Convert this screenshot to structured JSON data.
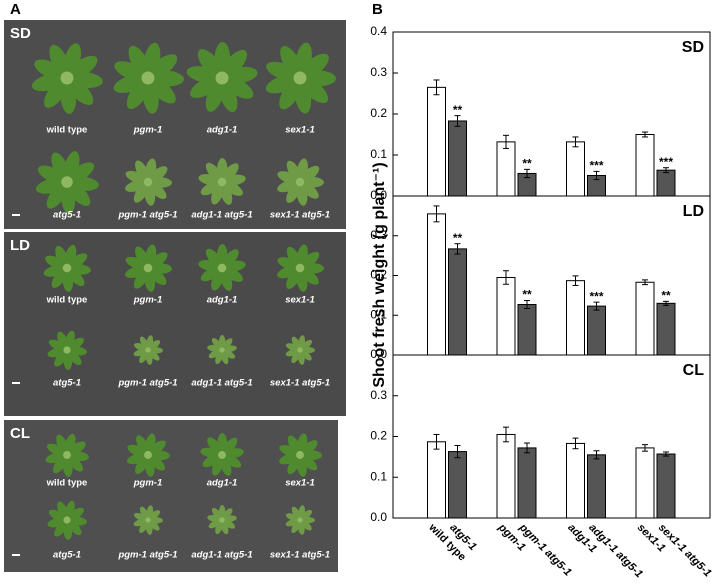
{
  "panel_labels": [
    "A",
    "B"
  ],
  "photos": [
    {
      "condition": "SD",
      "top_labels": [
        "wild type",
        "pgm-1",
        "adg1-1",
        "sex1-1"
      ],
      "bottom_labels": [
        "atg5-1",
        "pgm-1 atg5-1",
        "adg1-1 atg5-1",
        "sex1-1 atg5-1"
      ]
    },
    {
      "condition": "LD",
      "top_labels": [
        "wild type",
        "pgm-1",
        "adg1-1",
        "sex1-1"
      ],
      "bottom_labels": [
        "atg5-1",
        "pgm-1 atg5-1",
        "adg1-1 atg5-1",
        "sex1-1 atg5-1"
      ]
    },
    {
      "condition": "CL",
      "top_labels": [
        "wild type",
        "pgm-1",
        "adg1-1",
        "sex1-1"
      ],
      "bottom_labels": [
        "atg5-1",
        "pgm-1 atg5-1",
        "adg1-1 atg5-1",
        "sex1-1 atg5-1"
      ]
    }
  ],
  "chart_data": {
    "type": "bar",
    "ylabel": "Shoot fresh weight (g plant⁻¹)",
    "categories": [
      "wild type",
      "atg5-1",
      "pgm-1",
      "pgm-1 atg5-1",
      "adg1-1",
      "adg1-1 atg5-1",
      "sex1-1",
      "sex1-1 atg5-1"
    ],
    "colors": [
      "#ffffff",
      "#555555",
      "#ffffff",
      "#555555",
      "#ffffff",
      "#555555",
      "#ffffff",
      "#555555"
    ],
    "panels": [
      {
        "label": "SD",
        "ylim": [
          0,
          0.4
        ],
        "yticks": [
          {
            "value": 0,
            "label": "0.0"
          },
          0.1,
          0.2,
          0.3,
          0.4
        ],
        "values": [
          0.265,
          0.183,
          0.132,
          0.055,
          0.132,
          0.05,
          0.15,
          0.063
        ],
        "errors": [
          0.018,
          0.013,
          0.016,
          0.01,
          0.012,
          0.01,
          0.006,
          0.006
        ],
        "significance": [
          null,
          "**",
          null,
          "**",
          null,
          "***",
          null,
          "***"
        ]
      },
      {
        "label": "LD",
        "ylim": [
          0,
          0.4
        ],
        "yticks": [
          {
            "value": 0,
            "label": "0.0"
          },
          0.1,
          0.2,
          0.3
        ],
        "values": [
          0.355,
          0.267,
          0.195,
          0.127,
          0.187,
          0.123,
          0.183,
          0.13
        ],
        "errors": [
          0.02,
          0.013,
          0.017,
          0.01,
          0.012,
          0.01,
          0.006,
          0.005
        ],
        "significance": [
          null,
          "**",
          null,
          "**",
          null,
          "***",
          null,
          "**"
        ]
      },
      {
        "label": "CL",
        "ylim": [
          0,
          0.4
        ],
        "yticks": [
          {
            "value": 0,
            "label": "0.0"
          },
          0.1,
          0.2,
          0.3
        ],
        "values": [
          0.187,
          0.163,
          0.205,
          0.172,
          0.183,
          0.155,
          0.172,
          0.157
        ],
        "errors": [
          0.018,
          0.015,
          0.018,
          0.012,
          0.013,
          0.01,
          0.008,
          0.005
        ],
        "significance": [
          null,
          null,
          null,
          null,
          null,
          null,
          null,
          null
        ]
      }
    ]
  }
}
